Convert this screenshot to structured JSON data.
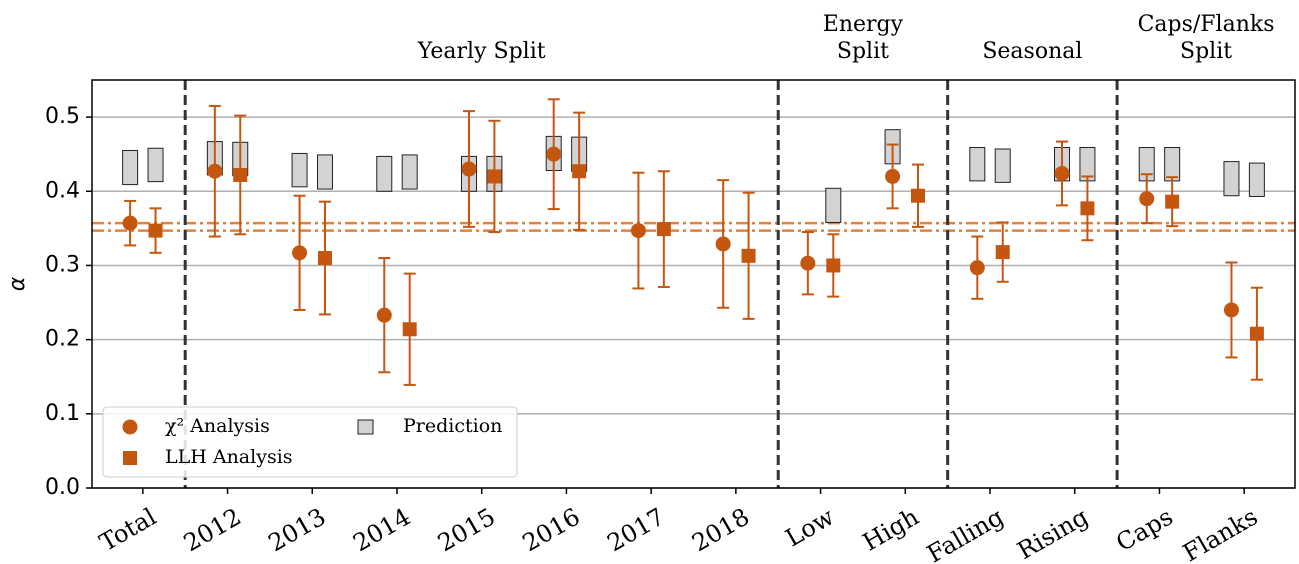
{
  "chart_data": {
    "type": "errorbar",
    "ylabel": "α",
    "categories": [
      "Total",
      "2012",
      "2013",
      "2014",
      "2015",
      "2016",
      "2017",
      "2018",
      "Low",
      "High",
      "Falling",
      "Rising",
      "Caps",
      "Flanks"
    ],
    "series": [
      {
        "name": "χ² Analysis",
        "marker": "circle",
        "color": "#c5560f",
        "values": [
          0.357,
          0.427,
          0.317,
          0.233,
          0.43,
          0.45,
          0.347,
          0.329,
          0.303,
          0.42,
          0.297,
          0.424,
          0.39,
          0.24
        ],
        "errors": [
          0.03,
          0.088,
          0.077,
          0.077,
          0.078,
          0.074,
          0.078,
          0.086,
          0.042,
          0.043,
          0.042,
          0.043,
          0.033,
          0.064
        ]
      },
      {
        "name": "LLH Analysis",
        "marker": "square",
        "color": "#c5560f",
        "values": [
          0.347,
          0.422,
          0.31,
          0.214,
          0.42,
          0.427,
          0.349,
          0.313,
          0.3,
          0.394,
          0.318,
          0.377,
          0.386,
          0.208
        ],
        "errors": [
          0.03,
          0.08,
          0.076,
          0.075,
          0.075,
          0.079,
          0.078,
          0.085,
          0.042,
          0.042,
          0.04,
          0.043,
          0.033,
          0.062
        ]
      }
    ],
    "prediction": {
      "name": "Prediction",
      "color": "#d3d3d3",
      "boxes": [
        {
          "low": [
            0.409,
            0.422,
            0.406,
            0.4,
            0.4,
            0.428,
            null,
            null,
            null,
            0.437,
            0.414,
            0.414,
            0.414,
            0.394
          ],
          "high": [
            0.455,
            0.467,
            0.451,
            0.447,
            0.447,
            0.474,
            null,
            null,
            null,
            0.483,
            0.459,
            0.459,
            0.459,
            0.44
          ]
        },
        {
          "low": [
            0.413,
            0.421,
            0.403,
            0.403,
            0.4,
            0.427,
            null,
            null,
            0.358,
            null,
            0.412,
            0.414,
            0.414,
            0.393
          ],
          "high": [
            0.458,
            0.466,
            0.449,
            0.449,
            0.447,
            0.473,
            null,
            null,
            0.404,
            null,
            0.457,
            0.459,
            0.459,
            0.438
          ]
        }
      ]
    },
    "reference_line_color": "#e0823d",
    "separators": [
      0.5,
      7.5,
      9.5,
      11.5
    ],
    "groups": [
      [
        "Yearly Split"
      ],
      [
        "Energy",
        "Split"
      ],
      [
        "Seasonal"
      ],
      [
        "Caps/Flanks",
        "Split"
      ]
    ],
    "xlim": [
      -0.6,
      13.6
    ],
    "ylim": [
      0,
      0.55
    ],
    "yticks": [
      {
        "value": 0,
        "label": "0.0"
      },
      0.1,
      0.2,
      0.3,
      0.4,
      0.5
    ],
    "grid": true,
    "legend": "lower left"
  }
}
